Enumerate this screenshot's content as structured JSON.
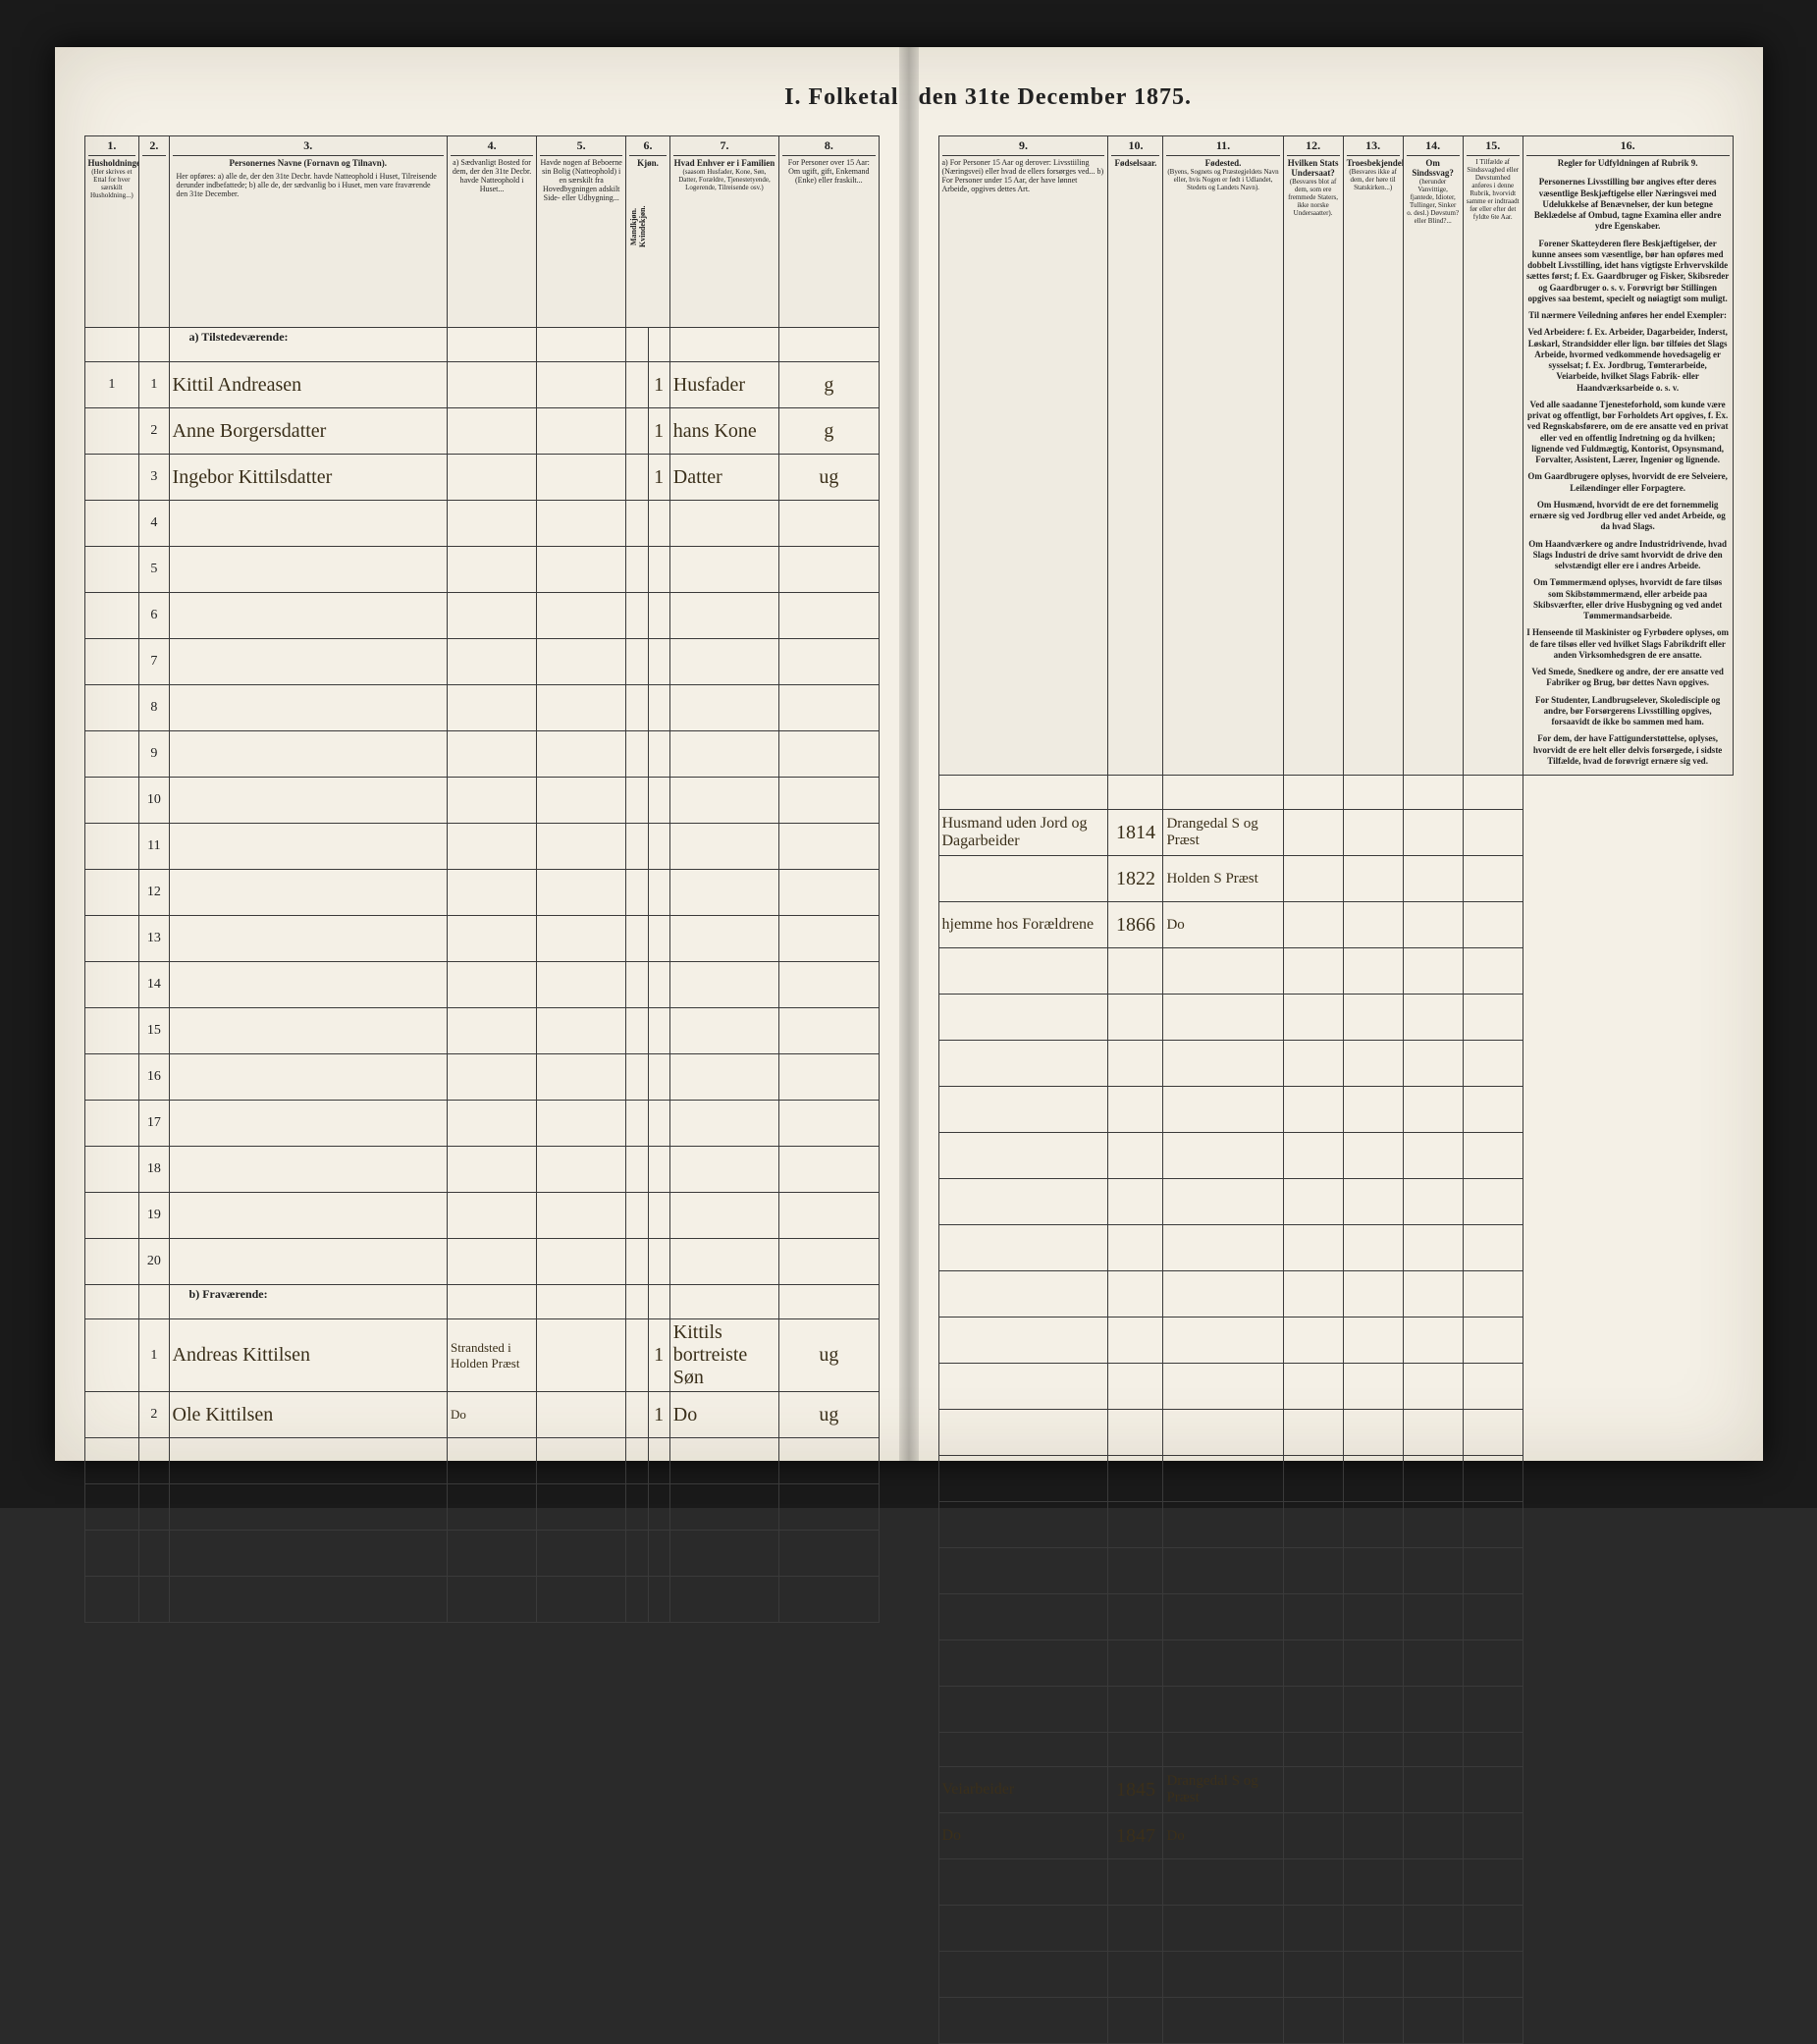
{
  "document": {
    "title_left": "I. Folketal",
    "title_right": "den 31te December 1875."
  },
  "columns_left": {
    "c1": {
      "num": "1.",
      "label": "Husholdninger.",
      "sub": "(Her skrives et Ettal for hver særskilt Husholdning...)"
    },
    "c2": {
      "num": "2.",
      "label": ""
    },
    "c3": {
      "num": "3.",
      "label": "Personernes Navne (Fornavn og Tilnavn).",
      "sub": "Her opføres: a) alle de, der den 31te Decbr. havde Natteophold i Huset, Tilreisende derunder indbefattede; b) alle de, der sædvanlig bo i Huset, men vare fraværende den 31te December."
    },
    "c4": {
      "num": "4.",
      "label": "a) Sædvanligt Bosted for dem, der den 31te Decbr. havde Natteophold i Huset..."
    },
    "c5": {
      "num": "5.",
      "label": "Havde nogen af Beboerne sin Bolig (Natteophold) i en særskilt fra Hovedbygningen adskilt Side- eller Udbygning..."
    },
    "c6": {
      "num": "6.",
      "label": "Kjøn.",
      "sub_a": "Mandkjøn.",
      "sub_b": "Kvindekjøn."
    },
    "c7": {
      "num": "7.",
      "label": "Hvad Enhver er i Familien",
      "sub": "(saasom Husfader, Kone, Søn, Datter, Forældre, Tjenestetyende, Logerende, Tilreisende osv.)"
    },
    "c8": {
      "num": "8.",
      "label": "For Personer over 15 Aar: Om ugift, gift, Enkemand (Enke) eller fraskilt..."
    }
  },
  "columns_right": {
    "c9": {
      "num": "9.",
      "label": "a) For Personer 15 Aar og derover: Livsstiiling (Næringsvei) eller hvad de ellers forsørges ved... b) For Personer under 15 Aar, der have lønnet Arbeide, opgives dettes Art."
    },
    "c10": {
      "num": "10.",
      "label": "Fødselsaar."
    },
    "c11": {
      "num": "11.",
      "label": "Fødested.",
      "sub": "(Byens, Sognets og Præstegjeldets Navn eller, hvis Nogen er født i Udlandet, Stedets og Landets Navn)."
    },
    "c12": {
      "num": "12.",
      "label": "Hvilken Stats Undersaat?",
      "sub": "(Besvares blot af dem, som ere fremmede Staters, ikke norske Undersaatter)."
    },
    "c13": {
      "num": "13.",
      "label": "Troesbekjendelse.",
      "sub": "(Besvares ikke af dem, der høre til Statskirken...)"
    },
    "c14": {
      "num": "14.",
      "label": "Om Sindssvag?",
      "sub": "(herunder Vanvittige, fjantede, Idioter, Tullinger, Sinker o. desl.) Døvstum? eller Blind?..."
    },
    "c15": {
      "num": "15.",
      "label": "I Tilfælde af Sindssvaghed eller Døvstumhed anføres i denne Rubrik, hvorvidt samme er indtraadt før eller efter det fyldte 6te Aar."
    },
    "c16": {
      "num": "16.",
      "label": "Regler for Udfyldningen af Rubrik 9."
    }
  },
  "sections": {
    "a": "a) Tilstedeværende:",
    "b": "b) Fraværende:"
  },
  "rows_present": [
    {
      "hh": "1",
      "pn": "1",
      "name": "Kittil Andreasen",
      "c4": "",
      "c5": "",
      "sex": "1",
      "c7": "Husfader",
      "c8": "g",
      "c9": "Husmand uden Jord og Dagarbeider",
      "c10": "1814",
      "c11": "Drangedal S og Præst",
      "c12": "",
      "c13": "",
      "c14": "",
      "c15": ""
    },
    {
      "hh": "",
      "pn": "2",
      "name": "Anne Borgersdatter",
      "c4": "",
      "c5": "",
      "sex": "1",
      "c7": "hans Kone",
      "c8": "g",
      "c9": "",
      "c10": "1822",
      "c11": "Holden S Præst",
      "c12": "",
      "c13": "",
      "c14": "",
      "c15": ""
    },
    {
      "hh": "",
      "pn": "3",
      "name": "Ingebor Kittilsdatter",
      "c4": "",
      "c5": "",
      "sex": "1",
      "c7": "Datter",
      "c8": "ug",
      "c9": "hjemme hos Forældrene",
      "c10": "1866",
      "c11": "Do",
      "c12": "",
      "c13": "",
      "c14": "",
      "c15": ""
    }
  ],
  "empty_present_rows": 17,
  "rows_absent": [
    {
      "hh": "",
      "pn": "1",
      "name": "Andreas Kittilsen",
      "c4": "Strandsted i Holden Præst",
      "c5": "",
      "sex": "1",
      "c7": "Kittils bortreiste Søn",
      "c8": "ug",
      "c9": "Veiarbeider",
      "c10": "1845",
      "c11": "Drangedal S og Præst",
      "c12": "",
      "c13": "",
      "c14": "",
      "c15": ""
    },
    {
      "hh": "",
      "pn": "2",
      "name": "Ole Kittilsen",
      "c4": "Do",
      "c5": "",
      "sex": "1",
      "c7": "Do",
      "c8": "ug",
      "c9": "Do",
      "c10": "1847",
      "c11": "Do",
      "c12": "",
      "c13": "",
      "c14": "",
      "c15": ""
    }
  ],
  "empty_absent_rows": 4,
  "rules_text": [
    "Personernes <b>Livsstilling</b> bør angives efter deres væsentlige Beskjæftigelse eller Næringsvei med Udelukkelse af Benævnelser, der kun betegne Beklædelse af Ombud, tagne Examina eller andre ydre Egenskaber.",
    "Forener Skatteyderen flere Beskjæftigelser, der kunne ansees som væsentlige, bør han opføres med <b>dobbelt Livsstilling</b>, idet hans vigtigste Erhvervskilde sættes først; f. Ex. Gaardbruger og Fisker, Skibsreder og Gaardbruger o. s. v. Forøvrigt bør Stillingen opgives saa bestemt, specielt og <b>nøiagtigt</b> som muligt.",
    "Til nærmere Veiledning anføres her endel Exempler:",
    "Ved <b>Arbeidere</b>: f. Ex. Arbeider, Dagarbeider, Inderst, Løskarl, Strandsidder eller lign. bør tilføies det Slags Arbeide, hvormed vedkommende hovedsagelig er sysselsat; f. Ex. Jordbrug, Tømterarbeide, Veiarbeide, hvilket Slags Fabrik- eller Haandværksarbeide o. s. v.",
    "Ved alle saadanne <b>Tjenesteforhold</b>, som kunde være privat og offentligt, bør <b>Forholdets Art</b> opgives, f. Ex. ved Regnskabsførere, om de ere ansatte ved en privat eller ved en offentlig Indretning og da hvilken; lignende ved Fuldmægtig, Kontorist, Opsynsmand, Forvalter, Assistent, Lærer, Ingeniør og lignende.",
    "Om <b>Gaardbrugere</b> oplyses, hvorvidt de ere Selveiere, Leilændinger eller Forpagtere.",
    "Om <b>Husmænd</b>, hvorvidt de ere det fornemmelig ernære sig ved Jordbrug eller ved andet Arbeide, og da hvad Slags.",
    "Om <b>Haandværkere og andre Industridrivende</b>, hvad Slags Industri de drive samt hvorvidt de drive den selvstændigt eller ere i andres Arbeide.",
    "Om <b>Tømmermænd</b> oplyses, hvorvidt de fare tilsøs som Skibstømmermænd, eller arbeide paa Skibsværfter, eller drive Husbygning og ved andet Tømmermandsarbeide.",
    "I Henseende til <b>Maskinister og Fyrbødere</b> oplyses, om de fare tilsøs eller ved hvilket Slags Fabrikdrift eller anden Virksomhedsgren de ere ansatte.",
    "Ved <b>Smede, Snedkere og andre</b>, der ere ansatte ved Fabriker og Brug, bør dettes Navn opgives.",
    "For <b>Studenter, Landbrugselever, Skoledisciple og andre</b>, bør Forsørgerens Livsstilling opgives, forsaavidt de ikke bo sammen med ham.",
    "For dem, der have <b>Fattigunderstøttelse</b>, oplyses, hvorvidt de ere helt eller delvis forsørgede, i sidste Tilfælde, hvad de forøvrigt ernære sig ved."
  ],
  "colors": {
    "paper": "#f4f0e6",
    "ink": "#222222",
    "handwriting": "#3a2f1a",
    "border": "#3a3a3a"
  }
}
